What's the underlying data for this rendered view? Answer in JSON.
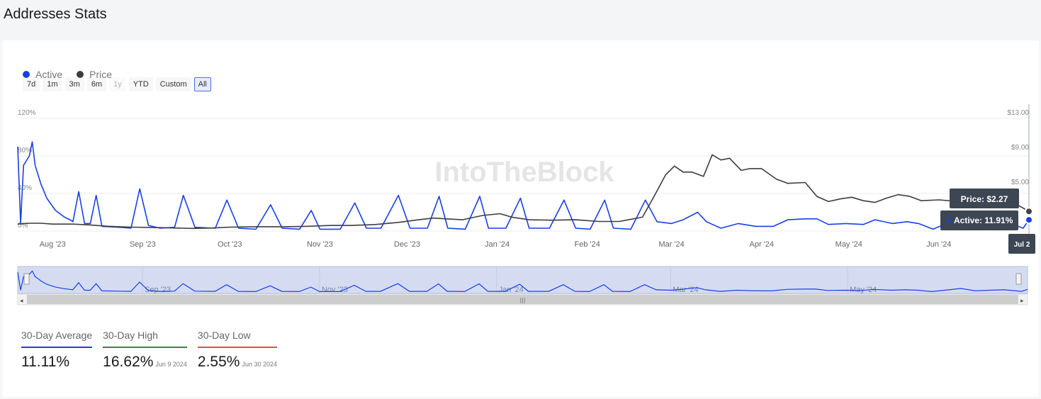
{
  "page": {
    "title": "Addresses Stats"
  },
  "range_selector": {
    "buttons": [
      {
        "label": "7d",
        "state": "normal"
      },
      {
        "label": "1m",
        "state": "normal"
      },
      {
        "label": "3m",
        "state": "normal"
      },
      {
        "label": "6m",
        "state": "normal"
      },
      {
        "label": "1y",
        "state": "disabled"
      },
      {
        "label": "YTD",
        "state": "normal"
      },
      {
        "label": "Custom",
        "state": "normal"
      },
      {
        "label": "All",
        "state": "selected"
      }
    ]
  },
  "watermark": "IntoTheBlock",
  "colors": {
    "active": "#1a3fe8",
    "price": "#3d3d3d",
    "navigator_fill": "#d5dcf2"
  },
  "chart_data": {
    "type": "line",
    "title": "",
    "legend": {
      "position": "top-left",
      "entries": [
        "Active",
        "Price"
      ]
    },
    "grid": true,
    "x_axis": {
      "ticks": [
        "Aug '23",
        "Sep '23",
        "Oct '23",
        "Nov '23",
        "Dec '23",
        "Jan '24",
        "Feb '24",
        "Mar '24",
        "Apr '24",
        "May '24",
        "Jun '24",
        "J"
      ],
      "range": [
        "2023-07-20",
        "2024-07-02"
      ]
    },
    "y_left": {
      "ticks": [
        "0%",
        "40%",
        "80%",
        "120%"
      ],
      "range": [
        0,
        120
      ]
    },
    "y_right": {
      "ticks": [
        "$13.00",
        "$9.00",
        "$5.00"
      ],
      "range": [
        0,
        13
      ]
    },
    "series": [
      {
        "name": "Active",
        "axis": "left",
        "points": [
          [
            "2023-07-20",
            90
          ],
          [
            "2023-07-21",
            8
          ],
          [
            "2023-07-22",
            70
          ],
          [
            "2023-07-24",
            80
          ],
          [
            "2023-07-25",
            95
          ],
          [
            "2023-07-26",
            70
          ],
          [
            "2023-07-28",
            50
          ],
          [
            "2023-07-30",
            35
          ],
          [
            "2023-08-02",
            22
          ],
          [
            "2023-08-05",
            15
          ],
          [
            "2023-08-07",
            12
          ],
          [
            "2023-08-08",
            10
          ],
          [
            "2023-08-10",
            42
          ],
          [
            "2023-08-12",
            8
          ],
          [
            "2023-08-14",
            8
          ],
          [
            "2023-08-16",
            38
          ],
          [
            "2023-08-18",
            5
          ],
          [
            "2023-08-24",
            4
          ],
          [
            "2023-08-28",
            3
          ],
          [
            "2023-08-31",
            45
          ],
          [
            "2023-09-03",
            6
          ],
          [
            "2023-09-07",
            3
          ],
          [
            "2023-09-12",
            4
          ],
          [
            "2023-09-15",
            38
          ],
          [
            "2023-09-19",
            4
          ],
          [
            "2023-09-26",
            3
          ],
          [
            "2023-09-30",
            33
          ],
          [
            "2023-10-04",
            3
          ],
          [
            "2023-10-10",
            2
          ],
          [
            "2023-10-15",
            28
          ],
          [
            "2023-10-19",
            3
          ],
          [
            "2023-10-25",
            2
          ],
          [
            "2023-10-29",
            22
          ],
          [
            "2023-11-01",
            2
          ],
          [
            "2023-11-08",
            2
          ],
          [
            "2023-11-13",
            30
          ],
          [
            "2023-11-17",
            3
          ],
          [
            "2023-11-22",
            3
          ],
          [
            "2023-11-28",
            38
          ],
          [
            "2023-12-02",
            3
          ],
          [
            "2023-12-08",
            3
          ],
          [
            "2023-12-12",
            37
          ],
          [
            "2023-12-15",
            3
          ],
          [
            "2023-12-21",
            2
          ],
          [
            "2023-12-26",
            37
          ],
          [
            "2023-12-29",
            3
          ],
          [
            "2024-01-04",
            3
          ],
          [
            "2024-01-09",
            35
          ],
          [
            "2024-01-12",
            3
          ],
          [
            "2024-01-19",
            3
          ],
          [
            "2024-01-24",
            33
          ],
          [
            "2024-01-28",
            3
          ],
          [
            "2024-02-02",
            2
          ],
          [
            "2024-02-07",
            33
          ],
          [
            "2024-02-10",
            3
          ],
          [
            "2024-02-16",
            2
          ],
          [
            "2024-02-21",
            33
          ],
          [
            "2024-02-25",
            10
          ],
          [
            "2024-03-01",
            8
          ],
          [
            "2024-03-05",
            12
          ],
          [
            "2024-03-10",
            20
          ],
          [
            "2024-03-13",
            10
          ],
          [
            "2024-03-18",
            3
          ],
          [
            "2024-03-24",
            8
          ],
          [
            "2024-03-30",
            5
          ],
          [
            "2024-04-05",
            5
          ],
          [
            "2024-04-10",
            12
          ],
          [
            "2024-04-16",
            13
          ],
          [
            "2024-04-20",
            13
          ],
          [
            "2024-04-24",
            7
          ],
          [
            "2024-04-30",
            8
          ],
          [
            "2024-05-06",
            7
          ],
          [
            "2024-05-10",
            12
          ],
          [
            "2024-05-16",
            8
          ],
          [
            "2024-05-21",
            10
          ],
          [
            "2024-05-25",
            8
          ],
          [
            "2024-05-30",
            2
          ],
          [
            "2024-06-05",
            10
          ],
          [
            "2024-06-09",
            16
          ],
          [
            "2024-06-14",
            5
          ],
          [
            "2024-06-19",
            8
          ],
          [
            "2024-06-24",
            10
          ],
          [
            "2024-06-30",
            3
          ],
          [
            "2024-07-02",
            11.91
          ]
        ]
      },
      {
        "name": "Price",
        "axis": "right",
        "points": [
          [
            "2023-07-20",
            0.8
          ],
          [
            "2023-07-24",
            0.9
          ],
          [
            "2023-07-28",
            0.9
          ],
          [
            "2023-08-01",
            0.8
          ],
          [
            "2023-08-08",
            0.8
          ],
          [
            "2023-08-14",
            0.7
          ],
          [
            "2023-08-20",
            0.55
          ],
          [
            "2023-08-28",
            0.45
          ],
          [
            "2023-09-05",
            0.4
          ],
          [
            "2023-09-12",
            0.35
          ],
          [
            "2023-09-18",
            0.3
          ],
          [
            "2023-09-25",
            0.35
          ],
          [
            "2023-10-01",
            0.45
          ],
          [
            "2023-10-10",
            0.5
          ],
          [
            "2023-10-20",
            0.5
          ],
          [
            "2023-10-28",
            0.55
          ],
          [
            "2023-11-05",
            0.65
          ],
          [
            "2023-11-12",
            0.65
          ],
          [
            "2023-11-20",
            0.75
          ],
          [
            "2023-11-28",
            1.0
          ],
          [
            "2023-12-05",
            1.3
          ],
          [
            "2023-12-10",
            1.5
          ],
          [
            "2023-12-15",
            1.4
          ],
          [
            "2023-12-20",
            1.3
          ],
          [
            "2023-12-27",
            1.8
          ],
          [
            "2024-01-02",
            2.0
          ],
          [
            "2024-01-06",
            1.6
          ],
          [
            "2024-01-12",
            1.3
          ],
          [
            "2024-01-20",
            1.25
          ],
          [
            "2024-01-28",
            1.3
          ],
          [
            "2024-02-05",
            1.1
          ],
          [
            "2024-02-12",
            1.1
          ],
          [
            "2024-02-20",
            1.6
          ],
          [
            "2024-02-24",
            4.0
          ],
          [
            "2024-02-28",
            6.5
          ],
          [
            "2024-03-02",
            7.5
          ],
          [
            "2024-03-05",
            6.8
          ],
          [
            "2024-03-08",
            6.8
          ],
          [
            "2024-03-12",
            6.3
          ],
          [
            "2024-03-15",
            8.8
          ],
          [
            "2024-03-18",
            8.2
          ],
          [
            "2024-03-21",
            8.4
          ],
          [
            "2024-03-25",
            7.0
          ],
          [
            "2024-03-28",
            7.2
          ],
          [
            "2024-04-01",
            7.2
          ],
          [
            "2024-04-06",
            6.0
          ],
          [
            "2024-04-10",
            5.5
          ],
          [
            "2024-04-16",
            5.6
          ],
          [
            "2024-04-20",
            4.0
          ],
          [
            "2024-04-24",
            3.4
          ],
          [
            "2024-04-28",
            3.7
          ],
          [
            "2024-05-02",
            3.9
          ],
          [
            "2024-05-06",
            3.5
          ],
          [
            "2024-05-10",
            3.3
          ],
          [
            "2024-05-14",
            3.8
          ],
          [
            "2024-05-18",
            4.2
          ],
          [
            "2024-05-22",
            4.0
          ],
          [
            "2024-05-26",
            3.5
          ],
          [
            "2024-06-01",
            3.6
          ],
          [
            "2024-06-08",
            3.4
          ],
          [
            "2024-06-14",
            3.2
          ],
          [
            "2024-06-20",
            3.3
          ],
          [
            "2024-06-26",
            3.4
          ],
          [
            "2024-07-02",
            2.27
          ]
        ]
      }
    ],
    "tooltip": {
      "date": "Jul 2",
      "price": "Price: $2.27",
      "active": "Active: 11.91%"
    },
    "navigator": {
      "ticks": [
        "Sep '23",
        "Nov '23",
        "Jan '24",
        "Mar '24",
        "May '24"
      ]
    }
  },
  "stats": [
    {
      "label": "30-Day Average",
      "value": "11.11%",
      "date": "",
      "color": "#1a3fe8"
    },
    {
      "label": "30-Day High",
      "value": "16.62%",
      "date": "Jun 9 2024",
      "color": "#2e8b2e"
    },
    {
      "label": "30-Day Low",
      "value": "2.55%",
      "date": "Jun 30 2024",
      "color": "#d9582b"
    }
  ]
}
